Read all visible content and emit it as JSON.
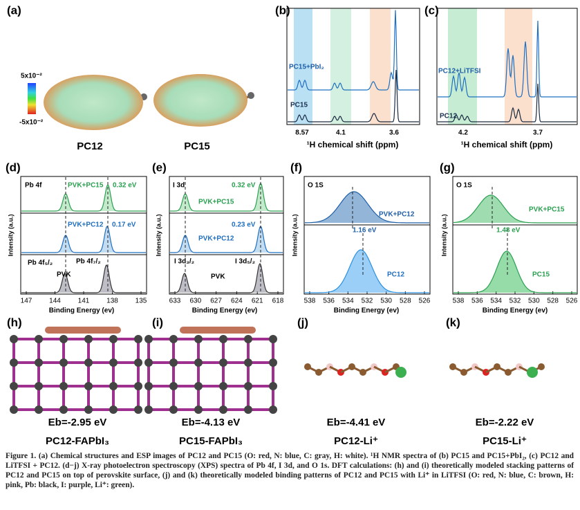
{
  "panels": {
    "a": {
      "label": "(a)",
      "scale_max": "5x10⁻²",
      "scale_min": "-5x10⁻²",
      "mol1": "PC12",
      "mol2": "PC15"
    },
    "b": {
      "label": "(b)",
      "trace1": "PC15+PbI₂",
      "trace2": "PC15",
      "ticks": [
        "8.57",
        "4.1",
        "3.6"
      ],
      "xlabel": "¹H chemical shift (ppm)"
    },
    "c": {
      "label": "(c)",
      "trace1": "PC12+LiTFSI",
      "trace2": "PC12",
      "ticks": [
        "4.2",
        "3.7"
      ],
      "xlabel": "¹H chemical shift (ppm)"
    },
    "d": {
      "label": "(d)",
      "title": "Pb 4f",
      "trace1": "PVK+PC15",
      "shift1": "0.32 eV",
      "trace2": "PVK+PC12",
      "shift2": "0.17 eV",
      "peak1": "Pb 4f₅/₂",
      "peak2": "Pb 4f₇/₂",
      "trace3": "PVK",
      "ticks": [
        "147",
        "144",
        "141",
        "138",
        "135"
      ],
      "xlabel": "Binding Energy (ev)",
      "ylabel": "Intensity (a.u.)"
    },
    "e": {
      "label": "(e)",
      "title": "I 3d",
      "shift1": "0.32 eV",
      "trace1": "PVK+PC15",
      "shift2": "0.23 eV",
      "trace2": "PVK+PC12",
      "peak1": "I 3d₃/₂",
      "peak2": "I 3d₅/₂",
      "trace3": "PVK",
      "ticks": [
        "633",
        "630",
        "627",
        "624",
        "621",
        "618"
      ],
      "xlabel": "Binding Energy (ev)",
      "ylabel": "Intensity (a.u.)"
    },
    "f": {
      "label": "(f)",
      "title": "O 1S",
      "trace1": "PVK+PC12",
      "shift": "1.16 eV",
      "trace2": "PC12",
      "ticks": [
        "538",
        "536",
        "534",
        "532",
        "530",
        "528",
        "526"
      ],
      "xlabel": "Binding Energy (ev)",
      "ylabel": "Intensity (a.u.)"
    },
    "g": {
      "label": "(g)",
      "title": "O 1S",
      "trace1": "PVK+PC15",
      "shift": "1.48 eV",
      "trace2": "PC15",
      "ticks": [
        "538",
        "536",
        "534",
        "532",
        "530",
        "528",
        "526"
      ],
      "xlabel": "Binding Energy (ev)",
      "ylabel": "Intensity (a.u.)"
    },
    "h": {
      "label": "(h)",
      "energy": "Eb=-2.95 eV",
      "name": "PC12-FAPbI₃"
    },
    "i": {
      "label": "(i)",
      "energy": "Eb=-4.13 eV",
      "name": "PC15-FAPbI₃"
    },
    "j": {
      "label": "(j)",
      "energy": "Eb=-4.41 eV",
      "name": "PC12-Li⁺"
    },
    "k": {
      "label": "(k)",
      "energy": "Eb=-2.22 eV",
      "name": "PC15-Li⁺"
    }
  },
  "caption": "Figure 1. (a) Chemical structures and ESP images of PC12 and PC15 (O: red, N: blue, C: gray, H: white). ¹H NMR spectra of (b) PC15 and PC15+PbI₂, (c) PC12 and LiTFSI + PC12. (d−j) X-ray photoelectron spectroscopy (XPS) spectra of Pb 4f, I 3d, and O 1s. DFT calculations: (h) and (i) theoretically modeled stacking patterns of PC12 and PC15 on top of perovskite surface, (j) and (k) theoretically modeled binding patterns of PC12 and PC15 with Li⁺ in LiTFSI (O: red, N: blue, C: brown, H: pink, Pb: black, I: purple, Li⁺: green)."
}
